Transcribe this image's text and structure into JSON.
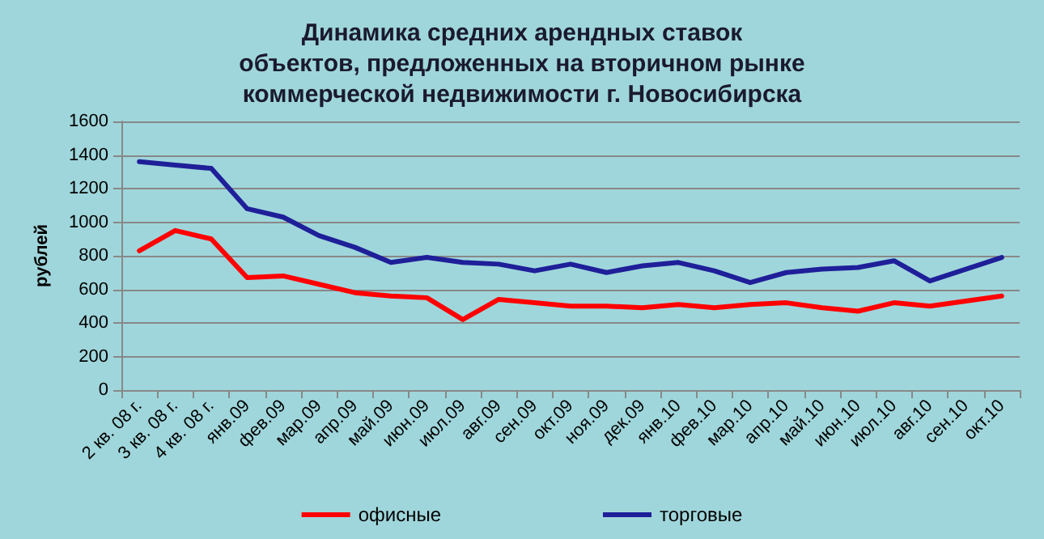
{
  "chart_data": {
    "type": "line",
    "title": "Динамика средних арендных ставок\nобъектов, предложенных на вторичном рынке\nкоммерческой недвижимости г. Новосибирска",
    "ylabel": "рублей",
    "categories": [
      "2 кв. 08 г.",
      "3 кв. 08 г.",
      "4 кв. 08 г.",
      "янв.09",
      "фев.09",
      "мар.09",
      "апр.09",
      "май.09",
      "июн.09",
      "июл.09",
      "авг.09",
      "сен.09",
      "окт.09",
      "ноя.09",
      "дек.09",
      "янв.10",
      "фев.10",
      "мар.10",
      "апр.10",
      "май.10",
      "июн.10",
      "июл.10",
      "авг.10",
      "сен.10",
      "окт.10"
    ],
    "series": [
      {
        "name": "офисные",
        "color": "#ff0000",
        "values": [
          830,
          950,
          900,
          670,
          680,
          630,
          580,
          560,
          550,
          420,
          540,
          520,
          500,
          500,
          490,
          510,
          490,
          510,
          520,
          490,
          470,
          520,
          500,
          530,
          560
        ]
      },
      {
        "name": "торговые",
        "color": "#1f1f99",
        "values": [
          1360,
          1340,
          1320,
          1080,
          1030,
          920,
          850,
          760,
          790,
          760,
          750,
          710,
          750,
          700,
          740,
          760,
          710,
          640,
          700,
          720,
          730,
          770,
          650,
          720,
          790
        ]
      }
    ],
    "ylim": [
      0,
      1600
    ],
    "yticks": [
      0,
      200,
      400,
      600,
      800,
      1000,
      1200,
      1400,
      1600
    ],
    "grid": "y",
    "legend": "bottom",
    "marker": "none",
    "line_style": "solid"
  }
}
